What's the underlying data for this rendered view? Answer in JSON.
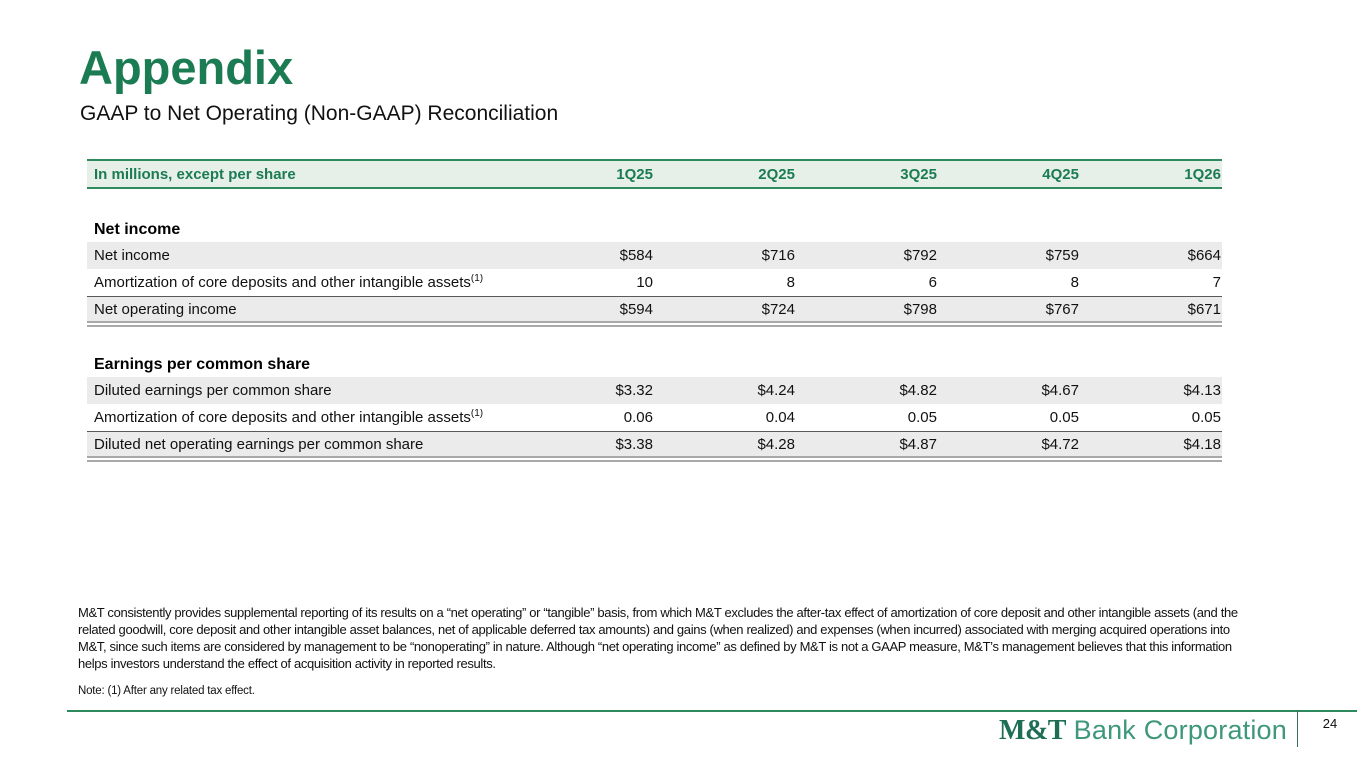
{
  "slide": {
    "title": "Appendix",
    "subtitle": "GAAP to Net Operating (Non-GAAP) Reconciliation"
  },
  "colors": {
    "brand_green": "#1b7b52",
    "header_background": "#e7f0e8",
    "header_border_green": "#2e8a5c",
    "shaded_row": "#ebebeb",
    "total_rule_gray": "#a9a9a9",
    "logo_green": "#3f977c"
  },
  "table": {
    "header": {
      "label": "In millions, except per share",
      "columns": [
        "1Q25",
        "2Q25",
        "3Q25",
        "4Q25",
        "1Q26"
      ]
    },
    "sections": [
      {
        "heading": "Net income",
        "rows": [
          {
            "label": "Net income",
            "values": [
              "$584",
              "$716",
              "$792",
              "$759",
              "$664"
            ],
            "style": "shaded"
          },
          {
            "label": "Amortization of core deposits and other intangible assets",
            "sup": "(1)",
            "values": [
              "10",
              "8",
              "6",
              "8",
              "7"
            ],
            "style": "plain"
          },
          {
            "label": "Net operating income",
            "values": [
              "$594",
              "$724",
              "$798",
              "$767",
              "$671"
            ],
            "style": "total"
          }
        ]
      },
      {
        "heading": "Earnings per common share",
        "rows": [
          {
            "label": "Diluted earnings per common share",
            "values": [
              "$3.32",
              "$4.24",
              "$4.82",
              "$4.67",
              "$4.13"
            ],
            "style": "shaded"
          },
          {
            "label": "Amortization of core deposits and other intangible assets",
            "sup": "(1)",
            "values": [
              "0.06",
              "0.04",
              "0.05",
              "0.05",
              "0.05"
            ],
            "style": "plain"
          },
          {
            "label": "Diluted net operating earnings per common share",
            "values": [
              "$3.38",
              "$4.28",
              "$4.87",
              "$4.72",
              "$4.18"
            ],
            "style": "total"
          }
        ]
      }
    ]
  },
  "footnote": {
    "text": "M&T consistently provides supplemental reporting of its results on a “net operating” or “tangible” basis, from which M&T excludes the after-tax effect of amortization of core deposit and other intangible assets (and the related goodwill, core deposit and other intangible asset balances, net of applicable deferred tax amounts) and gains (when realized) and expenses (when incurred) associated with merging acquired operations into M&T, since such items are considered by management to be “nonoperating” in nature. Although “net operating income” as defined by M&T is not a GAAP measure, M&T’s management believes that this information helps investors understand the effect of acquisition activity in reported results.",
    "note": "Note: (1) After any related tax effect."
  },
  "footer": {
    "logo_mt": "M&T",
    "logo_rest": " Bank Corporation",
    "page_number": "24"
  }
}
